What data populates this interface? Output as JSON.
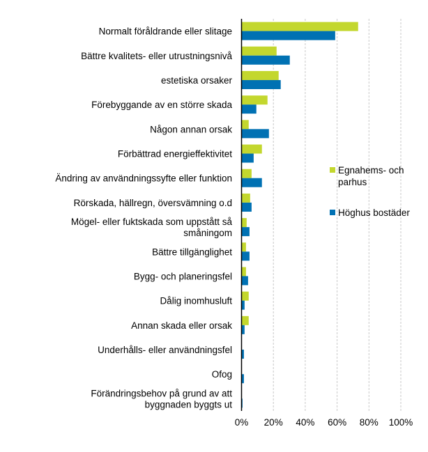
{
  "chart_data": {
    "type": "bar",
    "orientation": "horizontal",
    "categories": [
      [
        "Normalt föråldrande eller slitage"
      ],
      [
        "Bättre kvalitets- eller utrustningsnivå"
      ],
      [
        "estetiska orsaker"
      ],
      [
        "Förebyggande av en större skada"
      ],
      [
        "Någon annan orsak"
      ],
      [
        "Förbättrad energieffektivitet"
      ],
      [
        "Ändring av användningssyfte eller funktion"
      ],
      [
        "Rörskada, hällregn, översvämning o.d"
      ],
      [
        "Mögel- eller fuktskada som uppstått så",
        "småningom"
      ],
      [
        "Bättre tillgänglighet"
      ],
      [
        "Bygg- och planeringsfel"
      ],
      [
        "Dålig inomhusluft"
      ],
      [
        "Annan skada eller orsak"
      ],
      [
        "Underhålls- eller användningsfel"
      ],
      [
        "Ofog"
      ],
      [
        "Förändringsbehov på grund av att",
        "byggnaden byggts ut"
      ]
    ],
    "series": [
      {
        "name": "Egnahems- och parhus",
        "name_lines": [
          "Egnahems- och",
          "parhus"
        ],
        "color": "#c3d72e",
        "values": [
          73.2,
          22.0,
          23.3,
          16.3,
          4.5,
          12.8,
          6.3,
          5.4,
          3.2,
          2.8,
          2.8,
          4.5,
          4.5,
          0,
          0,
          0
        ]
      },
      {
        "name": "Höghus bostäder",
        "name_lines": [
          "Höghus bostäder"
        ],
        "color": "#0071b3",
        "values": [
          58.8,
          30.3,
          24.6,
          9.3,
          17.2,
          7.6,
          12.8,
          6.3,
          5.0,
          5.0,
          4.1,
          1.9,
          1.9,
          1.5,
          1.5,
          0.6
        ]
      }
    ],
    "x_ticks": [
      "0%",
      "20%",
      "40%",
      "60%",
      "80%",
      "100%"
    ],
    "xlim": [
      0,
      100
    ],
    "grid": "vertical dashed",
    "legend": "right",
    "title": "",
    "xlabel": "",
    "ylabel": ""
  }
}
